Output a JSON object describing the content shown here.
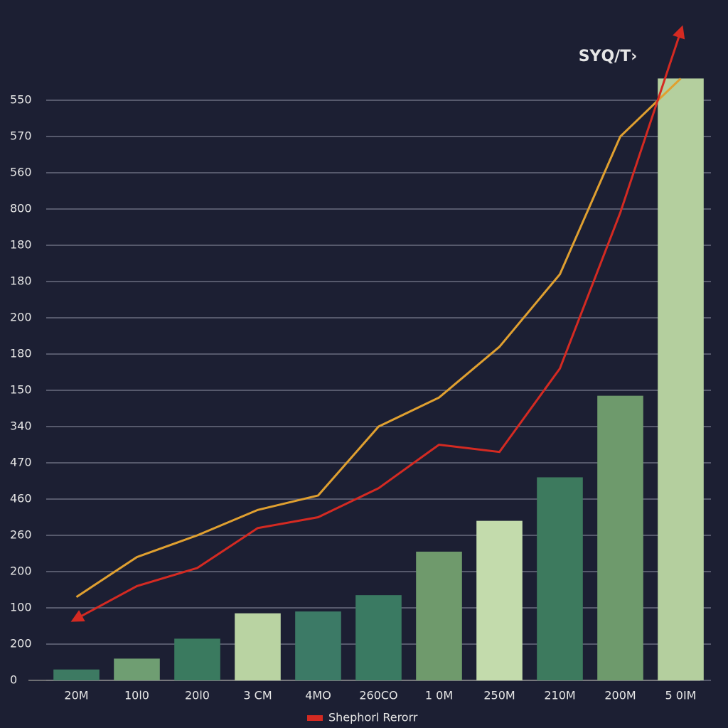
{
  "chart_data": {
    "type": "bar",
    "annotation": "SYQ/T›",
    "categories": [
      "20M",
      "10l0",
      "20l0",
      "3 CM",
      "4MO",
      "260CO",
      "1 0M",
      "250M",
      "210M",
      "200M",
      "5 0IM"
    ],
    "values": [
      0.3,
      0.6,
      1.15,
      1.85,
      1.9,
      2.35,
      3.55,
      4.4,
      5.6,
      7.85,
      16.6
    ],
    "colors": [
      "#3d7a62",
      "#6f9e72",
      "#3a7a5f",
      "#b9d3a2",
      "#3c7a66",
      "#3a7a62",
      "#6f9a6c",
      "#c3dbac",
      "#3d7a5e",
      "#6e9a6c",
      "#b4cf9e"
    ],
    "lines": [
      {
        "color": "#e0a030",
        "values": [
          2.3,
          3.4,
          4.0,
          4.7,
          5.1,
          7.0,
          7.8,
          9.2,
          11.2,
          15.0,
          16.6
        ]
      },
      {
        "name": "Shephorl Rerorr",
        "color": "#d42a22",
        "values": [
          1.7,
          2.6,
          3.1,
          4.2,
          4.5,
          5.3,
          6.5,
          6.3,
          8.6,
          12.9,
          17.9
        ]
      }
    ],
    "ylim": [
      0,
      18
    ],
    "yticks": [
      {
        "value": 0,
        "label": "0"
      },
      {
        "value": 1,
        "label": "200"
      },
      {
        "value": 2,
        "label": "100"
      },
      {
        "value": 3,
        "label": "200"
      },
      {
        "value": 4,
        "label": "260"
      },
      {
        "value": 5,
        "label": "460"
      },
      {
        "value": 6,
        "label": "470"
      },
      {
        "value": 7,
        "label": "340"
      },
      {
        "value": 8,
        "label": "150"
      },
      {
        "value": 9,
        "label": "180"
      },
      {
        "value": 10,
        "label": "200"
      },
      {
        "value": 11,
        "label": "180"
      },
      {
        "value": 12,
        "label": "180"
      },
      {
        "value": 13,
        "label": "800"
      },
      {
        "value": 14,
        "label": "560"
      },
      {
        "value": 15,
        "label": "570"
      },
      {
        "value": 16,
        "label": "550"
      }
    ],
    "grid": true,
    "legend": "bottom"
  }
}
